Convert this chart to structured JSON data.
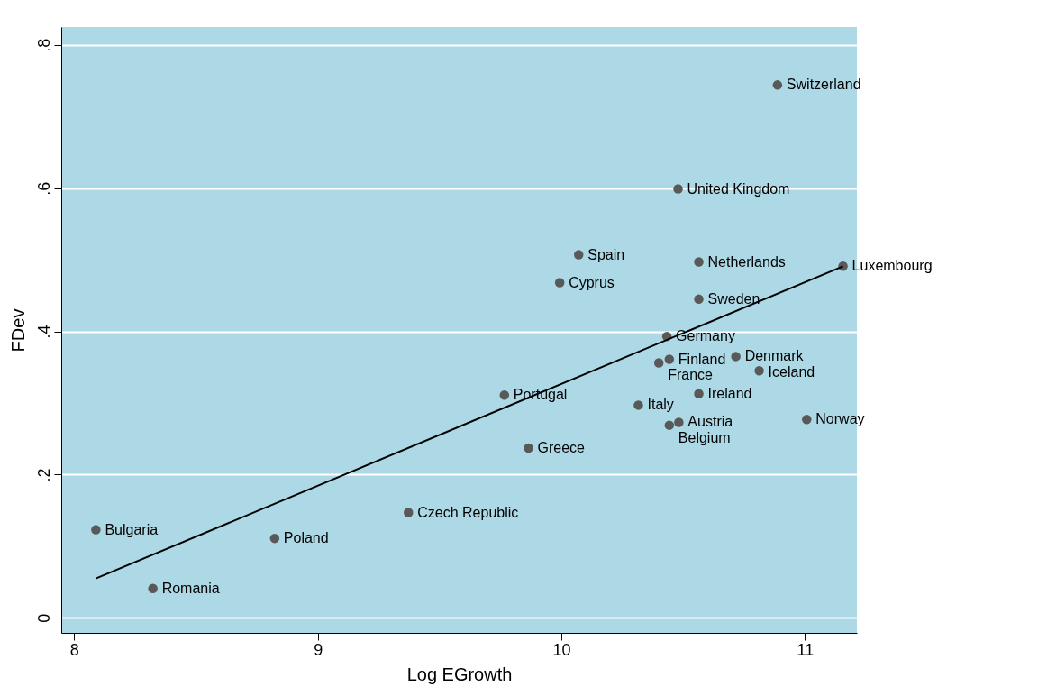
{
  "chart_data": {
    "type": "scatter",
    "xlabel": "Log EGrowth",
    "ylabel": "FDev",
    "xlim": [
      7.947,
      11.213
    ],
    "ylim": [
      -0.021,
      0.825
    ],
    "xticks": [
      8,
      9,
      10,
      11
    ],
    "yticks": [
      0,
      {
        "value": 0.2,
        "label": ".2"
      },
      {
        "value": 0.4,
        "label": ".4"
      },
      {
        "value": 0.6,
        "label": ".6"
      },
      {
        "value": 0.8,
        "label": ".8"
      }
    ],
    "grid": "y",
    "legend": false,
    "marker": "circle",
    "series": [
      {
        "color": "#595959",
        "x": [
          10.887,
          10.479,
          10.071,
          10.564,
          11.156,
          9.993,
          10.564,
          10.433,
          10.443,
          10.4,
          10.716,
          10.812,
          10.564,
          9.766,
          10.316,
          10.482,
          10.443,
          11.007,
          9.865,
          9.372,
          8.089,
          8.823,
          8.323
        ],
        "values": [
          0.744,
          0.599,
          0.507,
          0.497,
          0.491,
          0.468,
          0.445,
          0.393,
          0.361,
          0.356,
          0.365,
          0.345,
          0.313,
          0.311,
          0.297,
          0.273,
          0.269,
          0.277,
          0.237,
          0.147,
          0.123,
          0.111,
          0.041
        ],
        "value_labels": [
          "Switzerland",
          "United Kingdom",
          "Spain",
          "Netherlands",
          "Luxembourg",
          "Cyprus",
          "Sweden",
          "Germany",
          "Finland",
          "France",
          "Denmark",
          "Iceland",
          "Ireland",
          "Portugal",
          "Italy",
          "Austria",
          "Belgium",
          "Norway",
          "Greece",
          "Czech Republic",
          "Bulgaria",
          "Poland",
          "Romania"
        ]
      },
      {
        "type": "line",
        "marker": "none",
        "color": "#000000",
        "x": [
          8.089,
          11.156
        ],
        "values": [
          0.055,
          0.491
        ]
      }
    ]
  }
}
